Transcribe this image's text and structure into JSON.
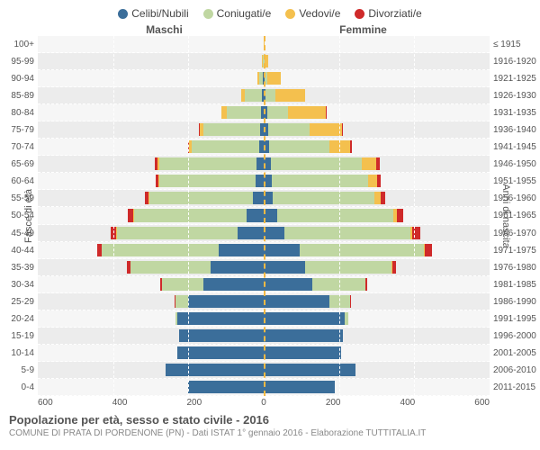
{
  "chart": {
    "type": "population-pyramid",
    "legend": [
      {
        "label": "Celibi/Nubili",
        "color": "#3b6e9a"
      },
      {
        "label": "Coniugati/e",
        "color": "#c0d7a2"
      },
      {
        "label": "Vedovi/e",
        "color": "#f4c04e"
      },
      {
        "label": "Divorziati/e",
        "color": "#cf2a2a"
      }
    ],
    "header_left": "Maschi",
    "header_right": "Femmine",
    "y_axis_left_label": "Fasce di età",
    "y_axis_right_label": "Anni di nascita",
    "x_ticks": [
      "600",
      "400",
      "200",
      "0",
      "200",
      "400",
      "600"
    ],
    "x_max": 600,
    "colors": {
      "celibi": "#3b6e9a",
      "coniugati": "#c0d7a2",
      "vedovi": "#f4c04e",
      "divorziati": "#cf2a2a",
      "background": "#f6f6f6",
      "background_alt": "#ececec",
      "grid": "#ffffff",
      "center_line": "#f4b944"
    },
    "rows": [
      {
        "age": "100+",
        "birth": "≤ 1915",
        "m": [
          0,
          0,
          1,
          0
        ],
        "f": [
          0,
          0,
          2,
          0
        ]
      },
      {
        "age": "95-99",
        "birth": "1916-1920",
        "m": [
          0,
          2,
          2,
          0
        ],
        "f": [
          0,
          2,
          10,
          0
        ]
      },
      {
        "age": "90-94",
        "birth": "1921-1925",
        "m": [
          2,
          10,
          5,
          0
        ],
        "f": [
          2,
          8,
          35,
          0
        ]
      },
      {
        "age": "85-89",
        "birth": "1926-1930",
        "m": [
          5,
          45,
          10,
          0
        ],
        "f": [
          5,
          25,
          80,
          0
        ]
      },
      {
        "age": "80-84",
        "birth": "1931-1935",
        "m": [
          8,
          90,
          15,
          0
        ],
        "f": [
          10,
          55,
          100,
          2
        ]
      },
      {
        "age": "75-79",
        "birth": "1936-1940",
        "m": [
          10,
          150,
          10,
          2
        ],
        "f": [
          12,
          110,
          85,
          3
        ]
      },
      {
        "age": "70-74",
        "birth": "1941-1945",
        "m": [
          12,
          180,
          6,
          3
        ],
        "f": [
          15,
          160,
          55,
          5
        ]
      },
      {
        "age": "65-69",
        "birth": "1946-1950",
        "m": [
          18,
          260,
          5,
          6
        ],
        "f": [
          20,
          240,
          40,
          8
        ]
      },
      {
        "age": "60-64",
        "birth": "1951-1955",
        "m": [
          22,
          255,
          3,
          8
        ],
        "f": [
          22,
          255,
          25,
          8
        ]
      },
      {
        "age": "55-59",
        "birth": "1956-1960",
        "m": [
          28,
          275,
          2,
          10
        ],
        "f": [
          25,
          270,
          15,
          12
        ]
      },
      {
        "age": "50-54",
        "birth": "1961-1965",
        "m": [
          45,
          300,
          2,
          15
        ],
        "f": [
          35,
          310,
          8,
          18
        ]
      },
      {
        "age": "45-49",
        "birth": "1966-1970",
        "m": [
          70,
          320,
          1,
          15
        ],
        "f": [
          55,
          335,
          5,
          20
        ]
      },
      {
        "age": "40-44",
        "birth": "1971-1975",
        "m": [
          120,
          310,
          0,
          12
        ],
        "f": [
          95,
          330,
          3,
          18
        ]
      },
      {
        "age": "35-39",
        "birth": "1976-1980",
        "m": [
          140,
          215,
          0,
          8
        ],
        "f": [
          110,
          230,
          2,
          10
        ]
      },
      {
        "age": "30-34",
        "birth": "1981-1985",
        "m": [
          160,
          110,
          0,
          4
        ],
        "f": [
          130,
          140,
          0,
          5
        ]
      },
      {
        "age": "25-29",
        "birth": "1986-1990",
        "m": [
          200,
          35,
          0,
          1
        ],
        "f": [
          175,
          55,
          0,
          2
        ]
      },
      {
        "age": "20-24",
        "birth": "1991-1995",
        "m": [
          230,
          4,
          0,
          0
        ],
        "f": [
          215,
          10,
          0,
          0
        ]
      },
      {
        "age": "15-19",
        "birth": "1996-2000",
        "m": [
          225,
          0,
          0,
          0
        ],
        "f": [
          210,
          0,
          0,
          0
        ]
      },
      {
        "age": "10-14",
        "birth": "2001-2005",
        "m": [
          230,
          0,
          0,
          0
        ],
        "f": [
          205,
          0,
          0,
          0
        ]
      },
      {
        "age": "5-9",
        "birth": "2006-2010",
        "m": [
          260,
          0,
          0,
          0
        ],
        "f": [
          245,
          0,
          0,
          0
        ]
      },
      {
        "age": "0-4",
        "birth": "2011-2015",
        "m": [
          200,
          0,
          0,
          0
        ],
        "f": [
          190,
          0,
          0,
          0
        ]
      }
    ],
    "title": "Popolazione per età, sesso e stato civile - 2016",
    "subtitle": "COMUNE DI PRATA DI PORDENONE (PN) - Dati ISTAT 1° gennaio 2016 - Elaborazione TUTTITALIA.IT"
  }
}
